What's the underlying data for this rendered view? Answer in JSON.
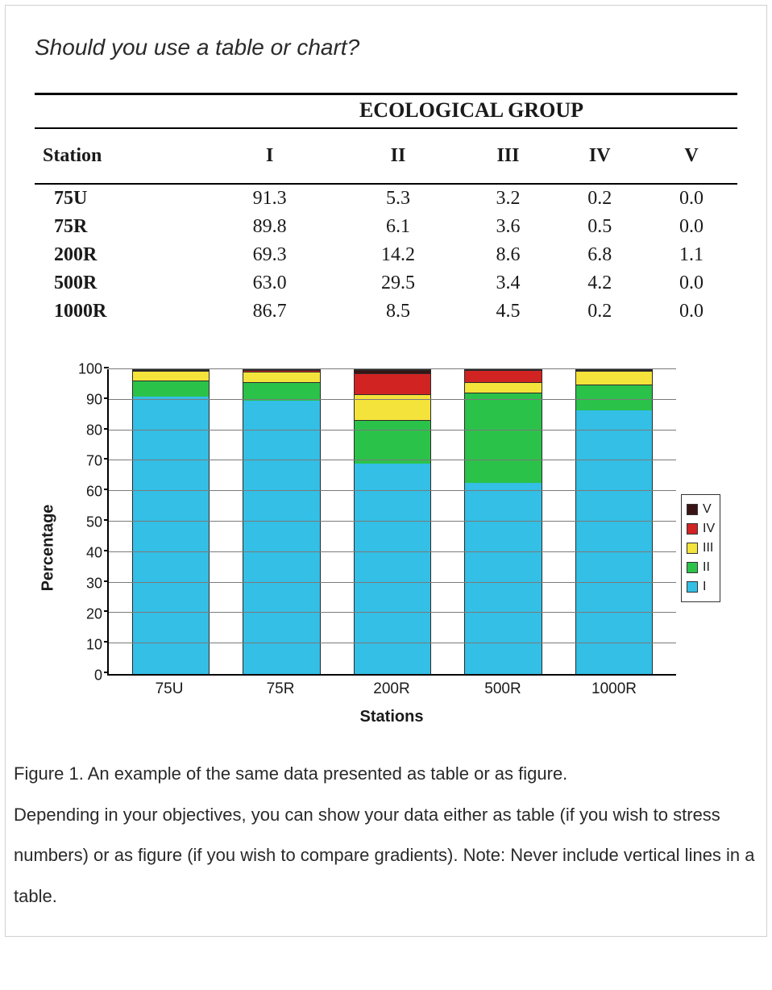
{
  "heading": "Should you use a table or chart?",
  "table": {
    "super_header": "ECOLOGICAL GROUP",
    "station_header": "Station",
    "group_headers": [
      "I",
      "II",
      "III",
      "IV",
      "V"
    ],
    "rows": [
      {
        "station": "75U",
        "vals": [
          "91.3",
          "5.3",
          "3.2",
          "0.2",
          "0.0"
        ]
      },
      {
        "station": "75R",
        "vals": [
          "89.8",
          "6.1",
          "3.6",
          "0.5",
          "0.0"
        ]
      },
      {
        "station": "200R",
        "vals": [
          "69.3",
          "14.2",
          "8.6",
          "6.8",
          "1.1"
        ]
      },
      {
        "station": "500R",
        "vals": [
          "63.0",
          "29.5",
          "3.4",
          "4.2",
          "0.0"
        ]
      },
      {
        "station": "1000R",
        "vals": [
          "86.7",
          "8.5",
          "4.5",
          "0.2",
          "0.0"
        ]
      }
    ]
  },
  "chart": {
    "type": "stacked-bar",
    "ylabel": "Percentage",
    "xlabel": "Stations",
    "ylim": [
      0,
      100
    ],
    "ytick_step": 10,
    "yticks": [
      0,
      10,
      20,
      30,
      40,
      50,
      60,
      70,
      80,
      90,
      100
    ],
    "grid_color": "#7a7a7a",
    "background_color": "#ffffff",
    "axis_color": "#000000",
    "bar_border_color": "#2a2a2a",
    "bar_width_pct": 14,
    "categories": [
      "75U",
      "75R",
      "200R",
      "500R",
      "1000R"
    ],
    "series": [
      {
        "name": "I",
        "color": "#33bfe6"
      },
      {
        "name": "II",
        "color": "#2bc24a"
      },
      {
        "name": "III",
        "color": "#f4e33a"
      },
      {
        "name": "IV",
        "color": "#d22323"
      },
      {
        "name": "V",
        "color": "#3a1414"
      }
    ],
    "legend_order": [
      "V",
      "IV",
      "III",
      "II",
      "I"
    ],
    "data": {
      "75U": {
        "I": 91.3,
        "II": 5.3,
        "III": 3.2,
        "IV": 0.2,
        "V": 0.0
      },
      "75R": {
        "I": 89.8,
        "II": 6.1,
        "III": 3.6,
        "IV": 0.5,
        "V": 0.0
      },
      "200R": {
        "I": 69.3,
        "II": 14.2,
        "III": 8.6,
        "IV": 6.8,
        "V": 1.1
      },
      "500R": {
        "I": 63.0,
        "II": 29.5,
        "III": 3.4,
        "IV": 4.2,
        "V": 0.0
      },
      "1000R": {
        "I": 86.7,
        "II": 8.5,
        "III": 4.5,
        "IV": 0.2,
        "V": 0.0
      }
    },
    "label_fontsize": 20,
    "tick_fontsize": 18,
    "legend_fontsize": 16
  },
  "caption": {
    "line1": "Figure 1. An example of the same data presented as table or as figure.",
    "line2": "Depending in your objectives, you can show your data either as table (if you wish to stress numbers) or as figure (if you wish to compare gradients). Note: Never include vertical lines in a table."
  }
}
